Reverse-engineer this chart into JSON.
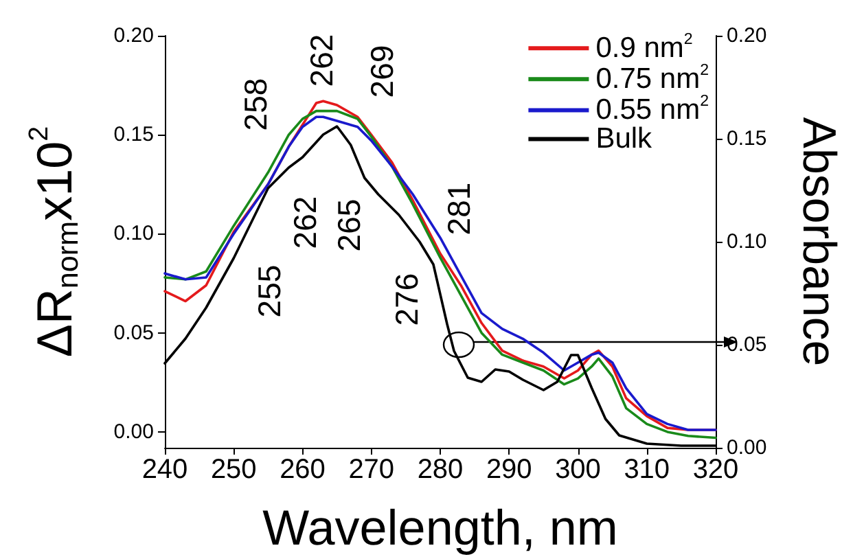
{
  "chart_data": {
    "type": "line",
    "xlabel": "Wavelength, nm",
    "ylabel": "ΔR$_{norm}$x10$^{2}$",
    "y2label": "Absorbance",
    "x": [
      240,
      243,
      246,
      250,
      255,
      258,
      260,
      262,
      263,
      265,
      268,
      270,
      273,
      276,
      280,
      283,
      286,
      289,
      292,
      295,
      298,
      300,
      302,
      303,
      305,
      307,
      310,
      313,
      316,
      320
    ],
    "xlim": [
      240,
      320
    ],
    "xticks": [
      240,
      250,
      260,
      270,
      280,
      290,
      300,
      310,
      320
    ],
    "ylim": [
      -0.008,
      0.2
    ],
    "yticks": [
      {
        "value": 0,
        "label": "0.00"
      },
      {
        "value": 0.05,
        "label": "0.05"
      },
      {
        "value": 0.1,
        "label": "0.10"
      },
      {
        "value": 0.15,
        "label": "0.15"
      },
      {
        "value": 0.2,
        "label": "0.20"
      }
    ],
    "y2lim": [
      0,
      0.2
    ],
    "y2ticks": [
      {
        "value": 0,
        "label": "0.00"
      },
      {
        "value": 0.05,
        "label": "0.05"
      },
      {
        "value": 0.1,
        "label": "0.10"
      },
      {
        "value": 0.15,
        "label": "0.15"
      },
      {
        "value": 0.2,
        "label": "0.20"
      }
    ],
    "series": [
      {
        "name": "0.9 nm$^{2}$",
        "color": "#e41a1c",
        "values": [
          0.071,
          0.066,
          0.074,
          0.101,
          0.125,
          0.144,
          0.155,
          0.166,
          0.167,
          0.165,
          0.159,
          0.15,
          0.136,
          0.117,
          0.09,
          0.074,
          0.055,
          0.041,
          0.036,
          0.033,
          0.027,
          0.031,
          0.039,
          0.041,
          0.033,
          0.017,
          0.008,
          0.002,
          0.001,
          0.001
        ]
      },
      {
        "name": "0.75 nm$^{2}$",
        "color": "#1a8a1a",
        "values": [
          0.078,
          0.077,
          0.081,
          0.104,
          0.131,
          0.15,
          0.158,
          0.162,
          0.162,
          0.162,
          0.158,
          0.149,
          0.134,
          0.115,
          0.088,
          0.069,
          0.05,
          0.039,
          0.035,
          0.031,
          0.024,
          0.027,
          0.033,
          0.037,
          0.028,
          0.012,
          0.004,
          0.0,
          -0.002,
          -0.003
        ]
      },
      {
        "name": "0.55 nm$^{2}$",
        "color": "#1a1acc",
        "values": [
          0.08,
          0.077,
          0.078,
          0.1,
          0.125,
          0.144,
          0.154,
          0.159,
          0.159,
          0.157,
          0.154,
          0.147,
          0.134,
          0.12,
          0.098,
          0.079,
          0.06,
          0.052,
          0.047,
          0.04,
          0.031,
          0.035,
          0.039,
          0.04,
          0.035,
          0.022,
          0.009,
          0.004,
          0.001,
          0.001
        ]
      },
      {
        "name": "Bulk",
        "color": "#000000",
        "axis": "y2",
        "x": [
          240,
          243,
          246,
          250,
          255,
          258,
          260,
          263,
          265,
          267,
          269,
          271,
          274,
          277,
          279,
          281,
          282,
          284,
          286,
          288,
          290,
          292,
          295,
          297,
          299,
          300,
          302,
          304,
          306,
          310,
          315,
          320
        ],
        "values": [
          0.041,
          0.053,
          0.068,
          0.092,
          0.126,
          0.136,
          0.141,
          0.152,
          0.156,
          0.147,
          0.131,
          0.123,
          0.113,
          0.1,
          0.089,
          0.06,
          0.047,
          0.034,
          0.032,
          0.038,
          0.037,
          0.033,
          0.028,
          0.032,
          0.045,
          0.045,
          0.029,
          0.014,
          0.006,
          0.002,
          0.001,
          0.001
        ]
      }
    ],
    "annotations": [
      "258",
      "262",
      "269",
      "262",
      "265",
      "255",
      "276",
      "281"
    ],
    "legend": "top right",
    "grid": false,
    "marker": "none",
    "line_style": "solid"
  }
}
